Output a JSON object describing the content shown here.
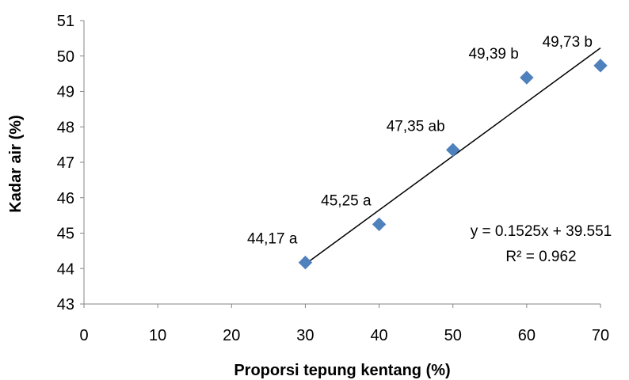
{
  "chart_data": {
    "type": "scatter",
    "xlabel": "Proporsi tepung kentang (%)",
    "ylabel": "Kadar air (%)",
    "xlim": [
      0,
      70
    ],
    "ylim": [
      43,
      51
    ],
    "x_ticks": [
      "0",
      "10",
      "20",
      "30",
      "40",
      "50",
      "60",
      "70"
    ],
    "y_ticks": [
      "43",
      "44",
      "45",
      "46",
      "47",
      "48",
      "49",
      "50",
      "51"
    ],
    "grid": false,
    "legend": "none",
    "marker_color": "#4F81BD",
    "series": [
      {
        "points": [
          {
            "x": 30,
            "y": 44.17,
            "label": "44,17 a"
          },
          {
            "x": 40,
            "y": 45.25,
            "label": "45,25 a"
          },
          {
            "x": 50,
            "y": 47.35,
            "label": "47,35 ab"
          },
          {
            "x": 60,
            "y": 49.39,
            "label": "49,39 b"
          },
          {
            "x": 70,
            "y": 49.73,
            "label": "49,73 b"
          }
        ]
      }
    ],
    "trendline": {
      "slope": 0.1525,
      "intercept": 39.551,
      "x_range": [
        30,
        70
      ],
      "color": "#000000",
      "equation": "y = 0.1525x + 39.551",
      "r_squared": "R² = 0.962"
    }
  }
}
